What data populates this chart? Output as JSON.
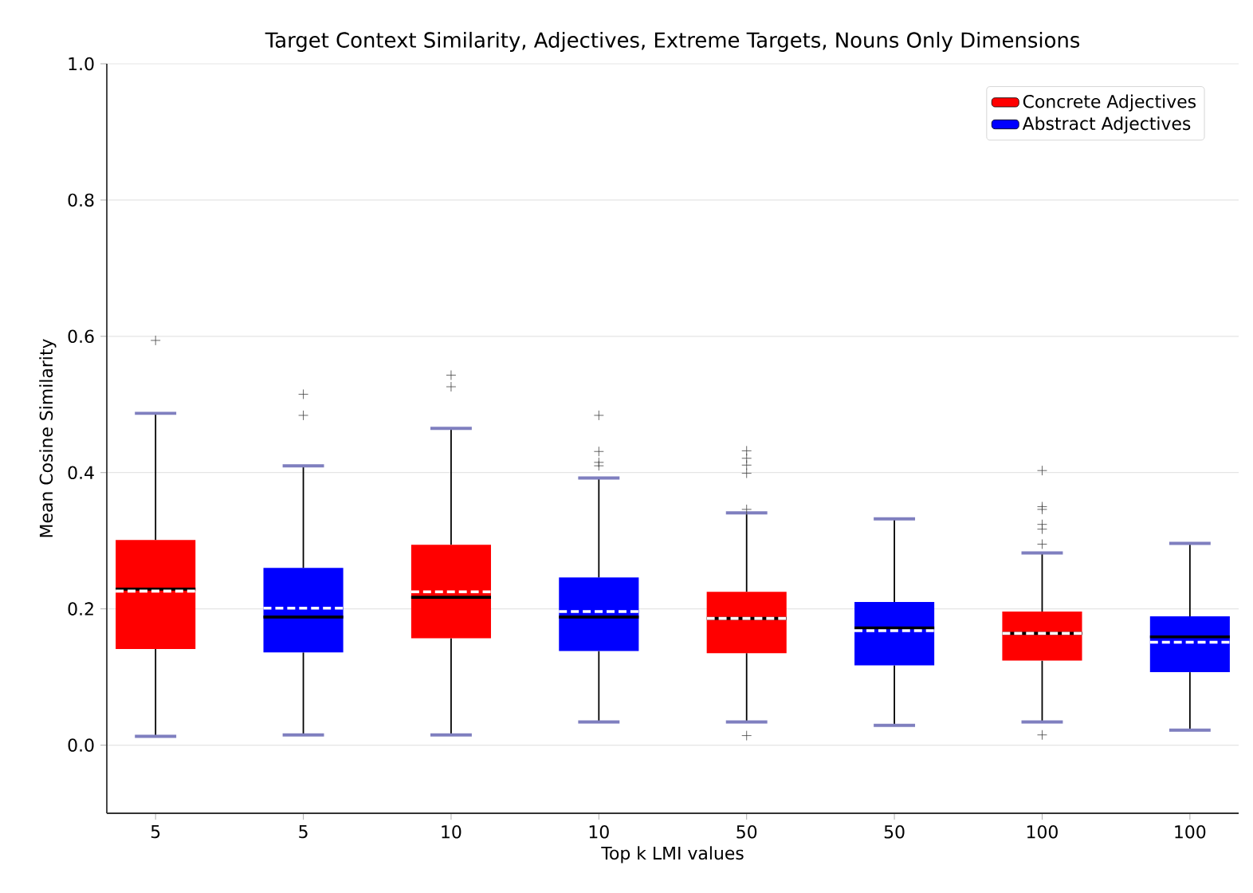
{
  "chart_data": {
    "type": "box",
    "title": "Target Context Similarity, Adjectives, Extreme Targets, Nouns Only Dimensions",
    "xlabel": "Top k LMI values",
    "ylabel": "Mean Cosine Similarity",
    "categories": [
      "5",
      "5",
      "10",
      "10",
      "50",
      "50",
      "100",
      "100"
    ],
    "ylim": [
      -0.1,
      1.0
    ],
    "yticks": [
      {
        "value": 0,
        "label": "0.0"
      },
      {
        "value": 0.2,
        "label": "0.2"
      },
      {
        "value": 0.4,
        "label": "0.4"
      },
      {
        "value": 0.6,
        "label": "0.6"
      },
      {
        "value": 0.8,
        "label": "0.8"
      },
      {
        "value": 1.0,
        "label": "1.0"
      }
    ],
    "grid": "y",
    "legend": "top right",
    "series": [
      {
        "name": "Concrete Adjectives",
        "color": "#ff0000",
        "boxes": [
          {
            "low": 0.013,
            "q1": 0.141,
            "median": 0.229,
            "q3": 0.301,
            "high": 0.487,
            "mean": 0.226,
            "outliers": [
              0.594
            ]
          },
          null,
          {
            "low": 0.015,
            "q1": 0.157,
            "median": 0.217,
            "q3": 0.294,
            "high": 0.465,
            "mean": 0.225,
            "outliers": [
              0.543,
              0.526
            ]
          },
          null,
          {
            "low": 0.034,
            "q1": 0.135,
            "median": 0.186,
            "q3": 0.225,
            "high": 0.341,
            "mean": 0.186,
            "outliers": [
              0.432,
              0.421,
              0.411,
              0.399,
              0.346,
              0.014
            ]
          },
          null,
          {
            "low": 0.034,
            "q1": 0.124,
            "median": 0.164,
            "q3": 0.196,
            "high": 0.282,
            "mean": 0.164,
            "outliers": [
              0.403,
              0.35,
              0.346,
              0.324,
              0.317,
              0.295,
              0.015
            ]
          },
          null
        ]
      },
      {
        "name": "Abstract Adjectives",
        "color": "#0000ff",
        "boxes": [
          null,
          {
            "low": 0.015,
            "q1": 0.136,
            "median": 0.188,
            "q3": 0.26,
            "high": 0.41,
            "mean": 0.201,
            "outliers": [
              0.515,
              0.484
            ]
          },
          null,
          {
            "low": 0.034,
            "q1": 0.138,
            "median": 0.188,
            "q3": 0.246,
            "high": 0.392,
            "mean": 0.196,
            "outliers": [
              0.484,
              0.431,
              0.415,
              0.41
            ]
          },
          null,
          {
            "low": 0.029,
            "q1": 0.117,
            "median": 0.172,
            "q3": 0.21,
            "high": 0.332,
            "mean": 0.168
          },
          null,
          {
            "low": 0.022,
            "q1": 0.107,
            "median": 0.159,
            "q3": 0.189,
            "high": 0.296,
            "mean": 0.151
          }
        ]
      }
    ]
  }
}
